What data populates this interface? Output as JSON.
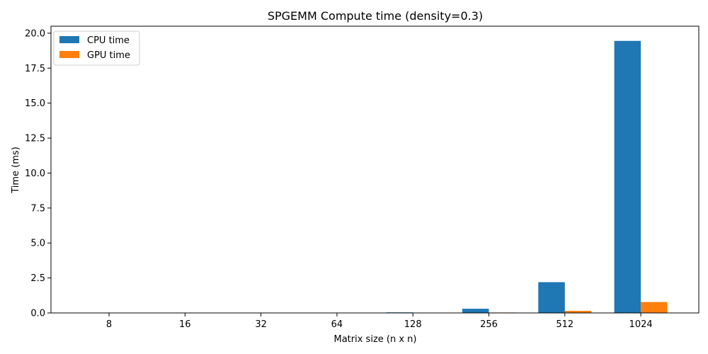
{
  "chart_data": {
    "type": "bar",
    "title": "SPGEMM Compute time (density=0.3)",
    "xlabel": "Matrix size (n x n)",
    "ylabel": "Time (ms)",
    "categories": [
      "8",
      "16",
      "32",
      "64",
      "128",
      "256",
      "512",
      "1024"
    ],
    "series": [
      {
        "name": "CPU time",
        "color": "#1f77b4",
        "values": [
          0.001,
          0.002,
          0.004,
          0.01,
          0.04,
          0.3,
          2.2,
          19.45
        ]
      },
      {
        "name": "GPU time",
        "color": "#ff7f0e",
        "values": [
          0.02,
          0.02,
          0.02,
          0.02,
          0.02,
          0.03,
          0.15,
          0.78
        ]
      }
    ],
    "ylim": [
      0,
      20.5
    ],
    "yticks": [
      0.0,
      2.5,
      5.0,
      7.5,
      10.0,
      12.5,
      15.0,
      17.5,
      20.0
    ],
    "ytick_labels": [
      "0.0",
      "2.5",
      "5.0",
      "7.5",
      "10.0",
      "12.5",
      "15.0",
      "17.5",
      "20.0"
    ],
    "grid": false,
    "legend_position": "top-left"
  }
}
